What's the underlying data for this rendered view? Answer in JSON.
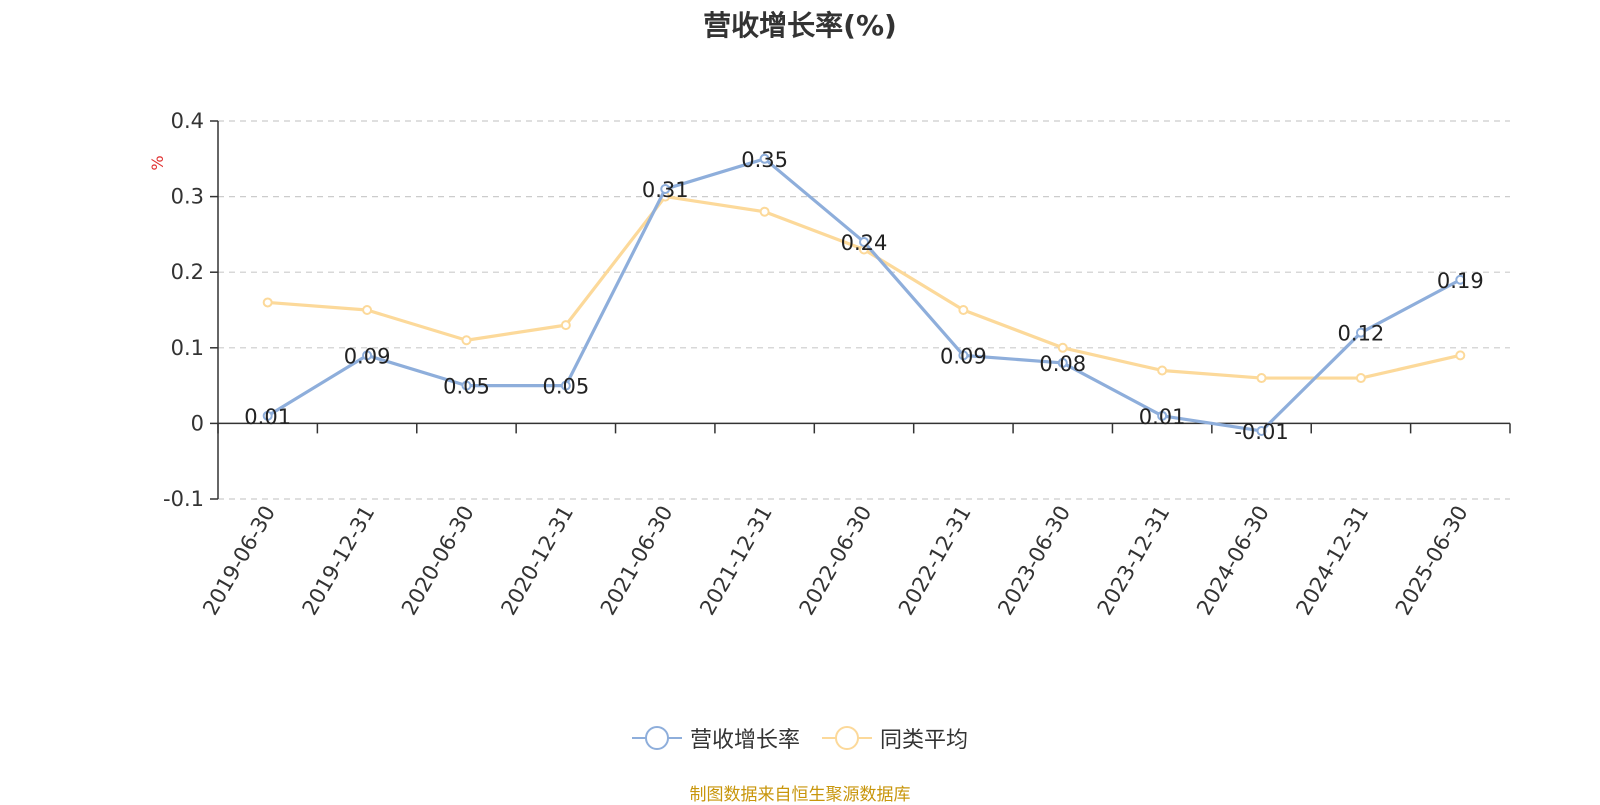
{
  "chart_data": {
    "type": "line",
    "title": "营收增长率(%)",
    "ylabel": "%",
    "xlabel": "",
    "ylim": [
      -0.1,
      0.4
    ],
    "yticks": [
      -0.1,
      0,
      0.1,
      0.2,
      0.3,
      0.4
    ],
    "ytick_labels": [
      "-0.1",
      "0",
      "0.1",
      "0.2",
      "0.3",
      "0.4"
    ],
    "grid": true,
    "legend_position": "bottom-center",
    "categories": [
      "2019-06-30",
      "2019-12-31",
      "2020-06-30",
      "2020-12-31",
      "2021-06-30",
      "2021-12-31",
      "2022-06-30",
      "2022-12-31",
      "2023-06-30",
      "2023-12-31",
      "2024-06-30",
      "2024-12-31",
      "2025-06-30"
    ],
    "series": [
      {
        "name": "营收增长率",
        "color": "#8eaedb",
        "values": [
          0.01,
          0.09,
          0.05,
          0.05,
          0.31,
          0.35,
          0.24,
          0.09,
          0.08,
          0.01,
          -0.01,
          0.12,
          0.19
        ],
        "labels": [
          "0.01",
          "0.09",
          "0.05",
          "0.05",
          "0.31",
          "0.35",
          "0.24",
          "0.09",
          "0.08",
          "0.01",
          "-0.01",
          "0.12",
          "0.19"
        ]
      },
      {
        "name": "同类平均",
        "color": "#fcd99a",
        "values": [
          0.16,
          0.15,
          0.11,
          0.13,
          0.3,
          0.28,
          0.23,
          0.15,
          0.1,
          0.07,
          0.06,
          0.06,
          0.09
        ]
      }
    ]
  },
  "source_note": "制图数据来自恒生聚源数据库"
}
